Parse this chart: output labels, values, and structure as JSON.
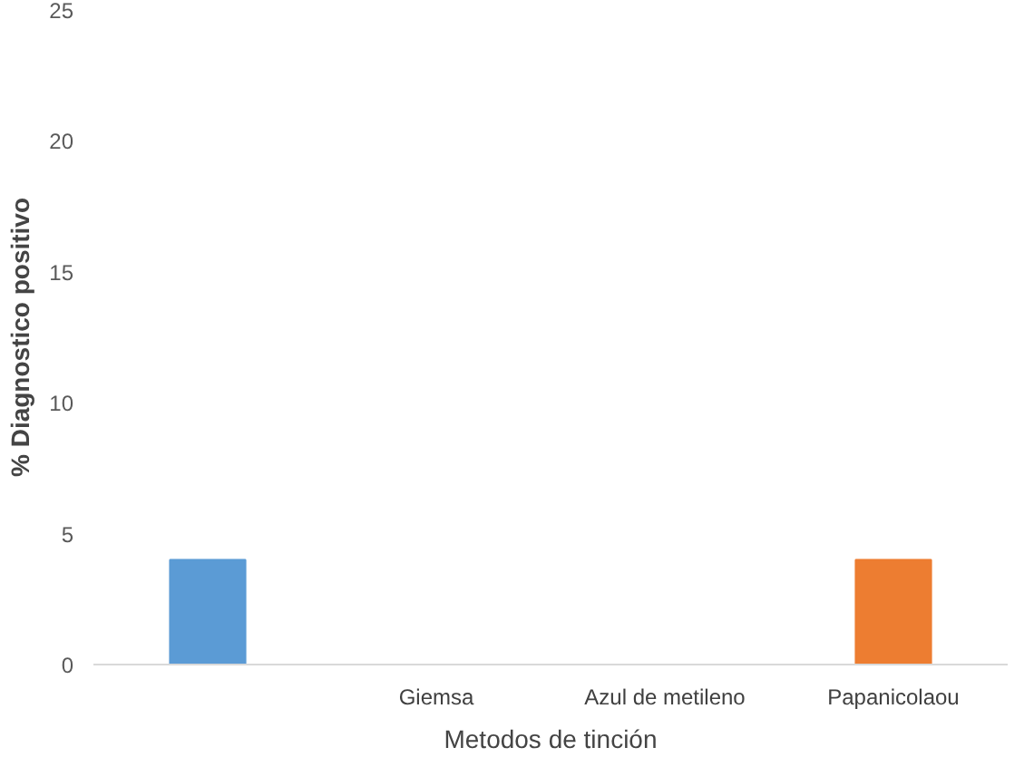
{
  "chart_data": {
    "type": "bar",
    "xlabel": "Metodos de tinción",
    "ylabel": "% Diagnostico positivo",
    "categories": [
      null,
      "Giemsa",
      "Azul de metileno",
      "Papanicolaou"
    ],
    "values": [
      4,
      0,
      0,
      4
    ],
    "colors": [
      "#5b9bd5",
      "#a5a5a5",
      "#ffc000",
      "#ed7d31"
    ],
    "ylim": [
      0,
      25
    ],
    "yticks": [
      0,
      5,
      10,
      15,
      20,
      25
    ],
    "grid": false
  }
}
